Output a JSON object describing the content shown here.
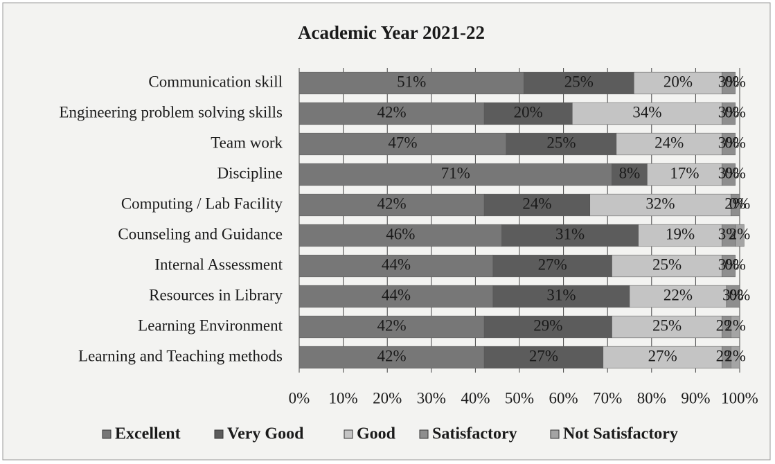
{
  "chart_data": {
    "type": "stacked_barh",
    "title": "Academic Year 2021-22",
    "categories": [
      "Communication skill",
      "Engineering problem solving skills",
      "Team work",
      "Discipline",
      "Computing / Lab Facility",
      "Counseling and Guidance",
      "Internal Assessment",
      "Resources in Library",
      "Learning Environment",
      "Learning and Teaching methods"
    ],
    "series": [
      {
        "name": "Excellent",
        "color": "#777777",
        "values": [
          51,
          42,
          47,
          71,
          42,
          46,
          44,
          44,
          42,
          42
        ],
        "value_labels": [
          "51%",
          "42%",
          "47%",
          "71%",
          "42%",
          "46%",
          "44%",
          "44%",
          "42%",
          "42%"
        ]
      },
      {
        "name": "Very Good",
        "color": "#5c5c5c",
        "values": [
          25,
          20,
          25,
          8,
          24,
          31,
          27,
          31,
          29,
          27
        ],
        "value_labels": [
          "25%",
          "20%",
          "25%",
          "8%",
          "24%",
          "31%",
          "27%",
          "31%",
          "29%",
          "27%"
        ]
      },
      {
        "name": "Good",
        "color": "#c4c4c4",
        "values": [
          20,
          34,
          24,
          17,
          32,
          19,
          25,
          22,
          25,
          27
        ],
        "value_labels": [
          "20%",
          "34%",
          "24%",
          "17%",
          "32%",
          "19%",
          "25%",
          "22%",
          "25%",
          "27%"
        ]
      },
      {
        "name": "Satisfactory",
        "color": "#8e8e8e",
        "values": [
          3,
          3,
          3,
          3,
          2,
          3,
          3,
          3,
          2,
          2
        ],
        "value_labels": [
          "3%",
          "3%",
          "3%",
          "3%",
          "2%",
          "3%",
          "3%",
          "3%",
          "2%",
          "2%"
        ]
      },
      {
        "name": "Not Satisfactory",
        "color": "#a4a4a4",
        "values": [
          0,
          0,
          0,
          0,
          0,
          2,
          0,
          0,
          2,
          2
        ],
        "value_labels": [
          "0%",
          "0%",
          "0%",
          "0%",
          "0%",
          "2%",
          "0%",
          "0%",
          "2%",
          "2%"
        ]
      }
    ],
    "xlim": [
      0,
      100
    ],
    "xticks": [
      {
        "value": 0,
        "label": "0%"
      },
      {
        "value": 10,
        "label": "10%"
      },
      {
        "value": 20,
        "label": "20%"
      },
      {
        "value": 30,
        "label": "30%"
      },
      {
        "value": 40,
        "label": "40%"
      },
      {
        "value": 50,
        "label": "50%"
      },
      {
        "value": 60,
        "label": "60%"
      },
      {
        "value": 70,
        "label": "70%"
      },
      {
        "value": 80,
        "label": "80%"
      },
      {
        "value": 90,
        "label": "90%"
      },
      {
        "value": 100,
        "label": "100%"
      }
    ],
    "grid": true,
    "legend": "bottom"
  }
}
